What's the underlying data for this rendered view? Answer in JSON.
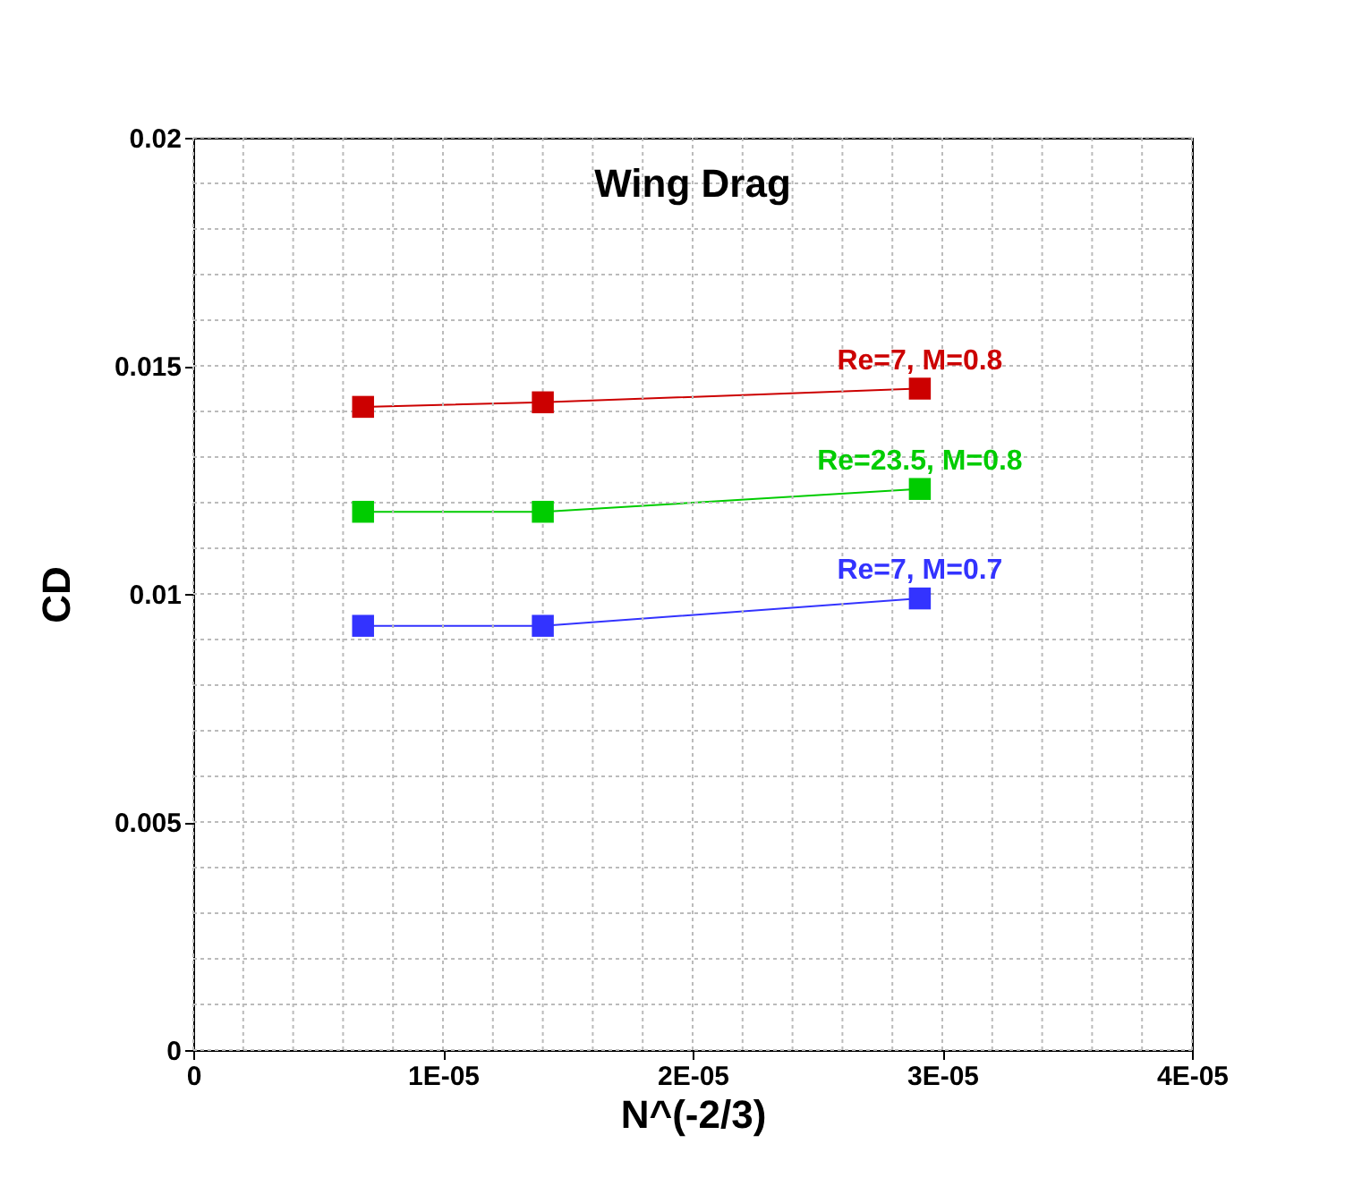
{
  "chart_data": {
    "type": "line",
    "title": "Wing Drag",
    "xlabel": "N^(-2/3)",
    "ylabel": "CD",
    "x": [
      6.8e-06,
      1.4e-05,
      2.91e-05
    ],
    "series": [
      {
        "name": "Re=7, M=0.8",
        "color": "#cc0000",
        "values": [
          0.0141,
          0.0142,
          0.0145
        ]
      },
      {
        "name": "Re=23.5, M=0.8",
        "color": "#00cc00",
        "values": [
          0.0118,
          0.0118,
          0.0123
        ]
      },
      {
        "name": "Re=7, M=0.7",
        "color": "#3333ff",
        "values": [
          0.0093,
          0.0093,
          0.0099
        ]
      }
    ],
    "xlim": [
      0,
      4e-05
    ],
    "xticks": [
      0,
      {
        "value": 2e-06,
        "label": null
      },
      {
        "value": 4e-06,
        "label": null
      },
      {
        "value": 6e-06,
        "label": null
      },
      {
        "value": 8e-06,
        "label": null
      },
      {
        "value": 1e-05,
        "label": "1E-05"
      },
      {
        "value": 1.2e-05,
        "label": null
      },
      {
        "value": 1.4e-05,
        "label": null
      },
      {
        "value": 1.6e-05,
        "label": null
      },
      {
        "value": 1.8e-05,
        "label": null
      },
      {
        "value": 2e-05,
        "label": "2E-05"
      },
      {
        "value": 2.2e-05,
        "label": null
      },
      {
        "value": 2.4e-05,
        "label": null
      },
      {
        "value": 2.6e-05,
        "label": null
      },
      {
        "value": 2.8e-05,
        "label": null
      },
      {
        "value": 3e-05,
        "label": "3E-05"
      },
      {
        "value": 3.2e-05,
        "label": null
      },
      {
        "value": 3.4e-05,
        "label": null
      },
      {
        "value": 3.6e-05,
        "label": null
      },
      {
        "value": 3.8e-05,
        "label": null
      },
      {
        "value": 4e-05,
        "label": "4E-05"
      }
    ],
    "ylim": [
      0,
      0.02
    ],
    "yticks": [
      0,
      {
        "value": 0.001,
        "label": null
      },
      {
        "value": 0.002,
        "label": null
      },
      {
        "value": 0.003,
        "label": null
      },
      {
        "value": 0.004,
        "label": null
      },
      0.005,
      {
        "value": 0.006,
        "label": null
      },
      {
        "value": 0.007,
        "label": null
      },
      {
        "value": 0.008,
        "label": null
      },
      {
        "value": 0.009,
        "label": null
      },
      0.01,
      {
        "value": 0.011,
        "label": null
      },
      {
        "value": 0.012,
        "label": null
      },
      {
        "value": 0.013,
        "label": null
      },
      {
        "value": 0.014,
        "label": null
      },
      0.015,
      {
        "value": 0.016,
        "label": null
      },
      {
        "value": 0.017,
        "label": null
      },
      {
        "value": 0.018,
        "label": null
      },
      {
        "value": 0.019,
        "label": null
      },
      0.02
    ],
    "grid": true,
    "marker": "square",
    "line_style": "solid",
    "legend": false
  }
}
